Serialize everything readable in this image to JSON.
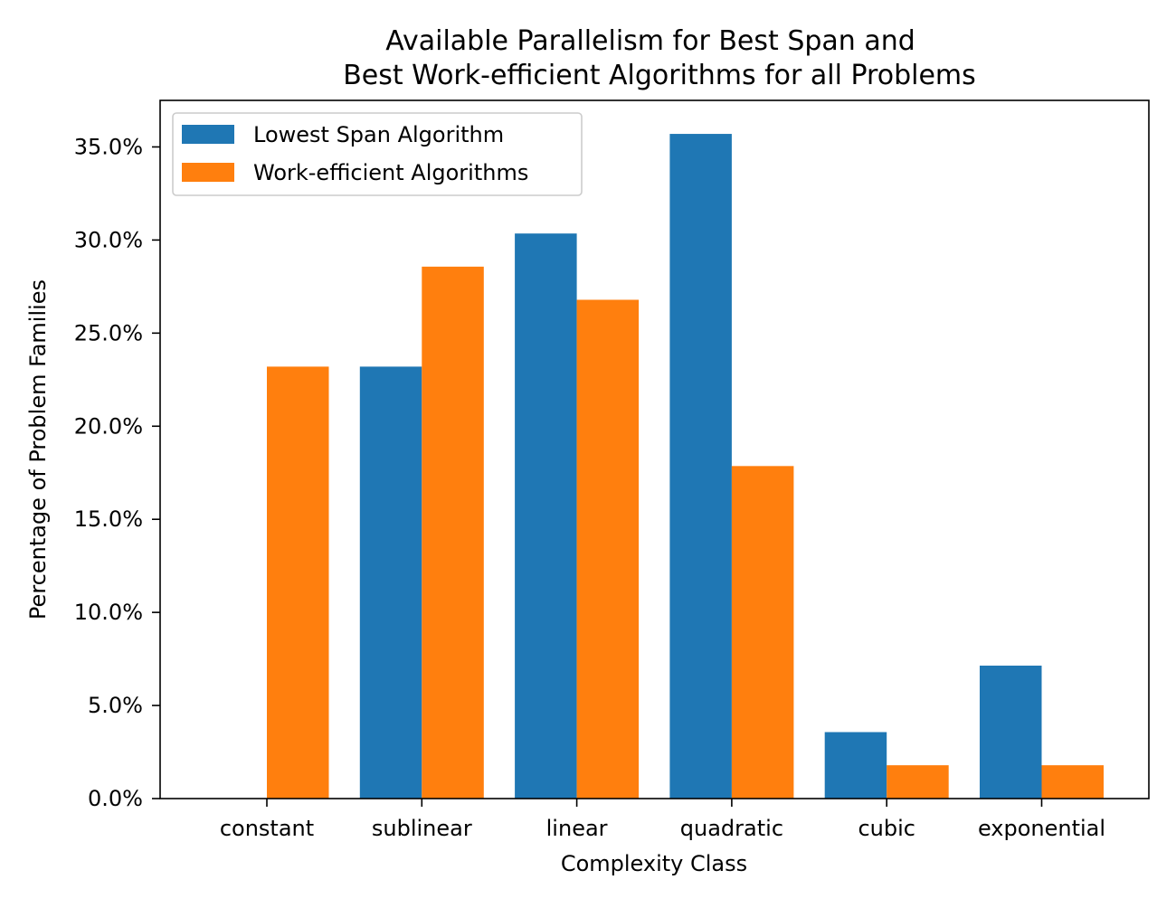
{
  "chart_data": {
    "type": "bar",
    "title": "Available Parallelism for Best Span and",
    "subtitle": "Best Work-efficient Algorithms for all Problems",
    "xlabel": "Complexity Class",
    "ylabel": "Percentage of Problem Families",
    "categories": [
      "constant",
      "sublinear",
      "linear",
      "quadratic",
      "cubic",
      "exponential"
    ],
    "series": [
      {
        "name": "Lowest Span Algorithm",
        "color": "#1f77b4",
        "values": [
          0.0,
          23.2,
          30.35,
          35.7,
          3.57,
          7.14
        ]
      },
      {
        "name": "Work-efficient Algorithms",
        "color": "#ff7f0e",
        "values": [
          23.2,
          28.57,
          26.79,
          17.86,
          1.79,
          1.79
        ]
      }
    ],
    "ylim": [
      0,
      37.5
    ],
    "yticks": [
      0,
      5,
      10,
      15,
      20,
      25,
      30,
      35
    ],
    "ytick_labels": [
      "0.0%",
      "5.0%",
      "10.0%",
      "15.0%",
      "20.0%",
      "25.0%",
      "30.0%",
      "35.0%"
    ],
    "legend_position": "top-left",
    "grid": false
  }
}
